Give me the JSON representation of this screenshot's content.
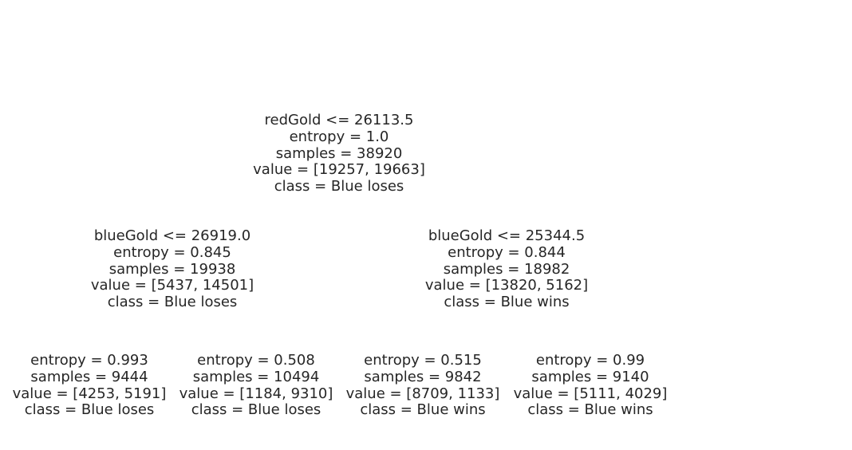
{
  "tree": {
    "nodes": [
      {
        "id": "root",
        "lines": [
          "redGold <= 26113.5",
          "entropy = 1.0",
          "samples = 38920",
          "value = [19257, 19663]",
          "class = Blue loses"
        ]
      },
      {
        "id": "left",
        "lines": [
          "blueGold <= 26919.0",
          "entropy = 0.845",
          "samples = 19938",
          "value = [5437, 14501]",
          "class = Blue loses"
        ]
      },
      {
        "id": "right",
        "lines": [
          "blueGold <= 25344.5",
          "entropy = 0.844",
          "samples = 18982",
          "value = [13820, 5162]",
          "class = Blue wins"
        ]
      },
      {
        "id": "left-left",
        "lines": [
          "entropy = 0.993",
          "samples = 9444",
          "value = [4253, 5191]",
          "class = Blue loses"
        ]
      },
      {
        "id": "left-right",
        "lines": [
          "entropy = 0.508",
          "samples = 10494",
          "value = [1184, 9310]",
          "class = Blue loses"
        ]
      },
      {
        "id": "right-left",
        "lines": [
          "entropy = 0.515",
          "samples = 9842",
          "value = [8709, 1133]",
          "class = Blue wins"
        ]
      },
      {
        "id": "right-right",
        "lines": [
          "entropy = 0.99",
          "samples = 9140",
          "value = [5111, 4029]",
          "class = Blue wins"
        ]
      }
    ]
  }
}
